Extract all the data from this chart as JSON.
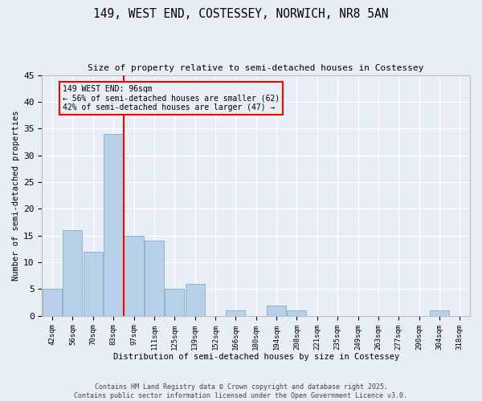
{
  "title_line1": "149, WEST END, COSTESSEY, NORWICH, NR8 5AN",
  "title_line2": "Size of property relative to semi-detached houses in Costessey",
  "xlabel": "Distribution of semi-detached houses by size in Costessey",
  "ylabel": "Number of semi-detached properties",
  "bar_color": "#b8d0e8",
  "bar_edge_color": "#8ab4d4",
  "categories": [
    "42sqm",
    "56sqm",
    "70sqm",
    "83sqm",
    "97sqm",
    "111sqm",
    "125sqm",
    "139sqm",
    "152sqm",
    "166sqm",
    "180sqm",
    "194sqm",
    "208sqm",
    "221sqm",
    "235sqm",
    "249sqm",
    "263sqm",
    "277sqm",
    "290sqm",
    "304sqm",
    "318sqm"
  ],
  "values": [
    5,
    16,
    12,
    34,
    15,
    14,
    5,
    6,
    0,
    1,
    0,
    2,
    1,
    0,
    0,
    0,
    0,
    0,
    0,
    1,
    0
  ],
  "ylim": [
    0,
    45
  ],
  "yticks": [
    0,
    5,
    10,
    15,
    20,
    25,
    30,
    35,
    40,
    45
  ],
  "vline_index": 3.5,
  "annotation_text": "149 WEST END: 96sqm\n← 56% of semi-detached houses are smaller (62)\n42% of semi-detached houses are larger (47) →",
  "bg_color": "#e8eef5",
  "grid_color": "#ffffff",
  "footer_text": "Contains HM Land Registry data © Crown copyright and database right 2025.\nContains public sector information licensed under the Open Government Licence v3.0."
}
